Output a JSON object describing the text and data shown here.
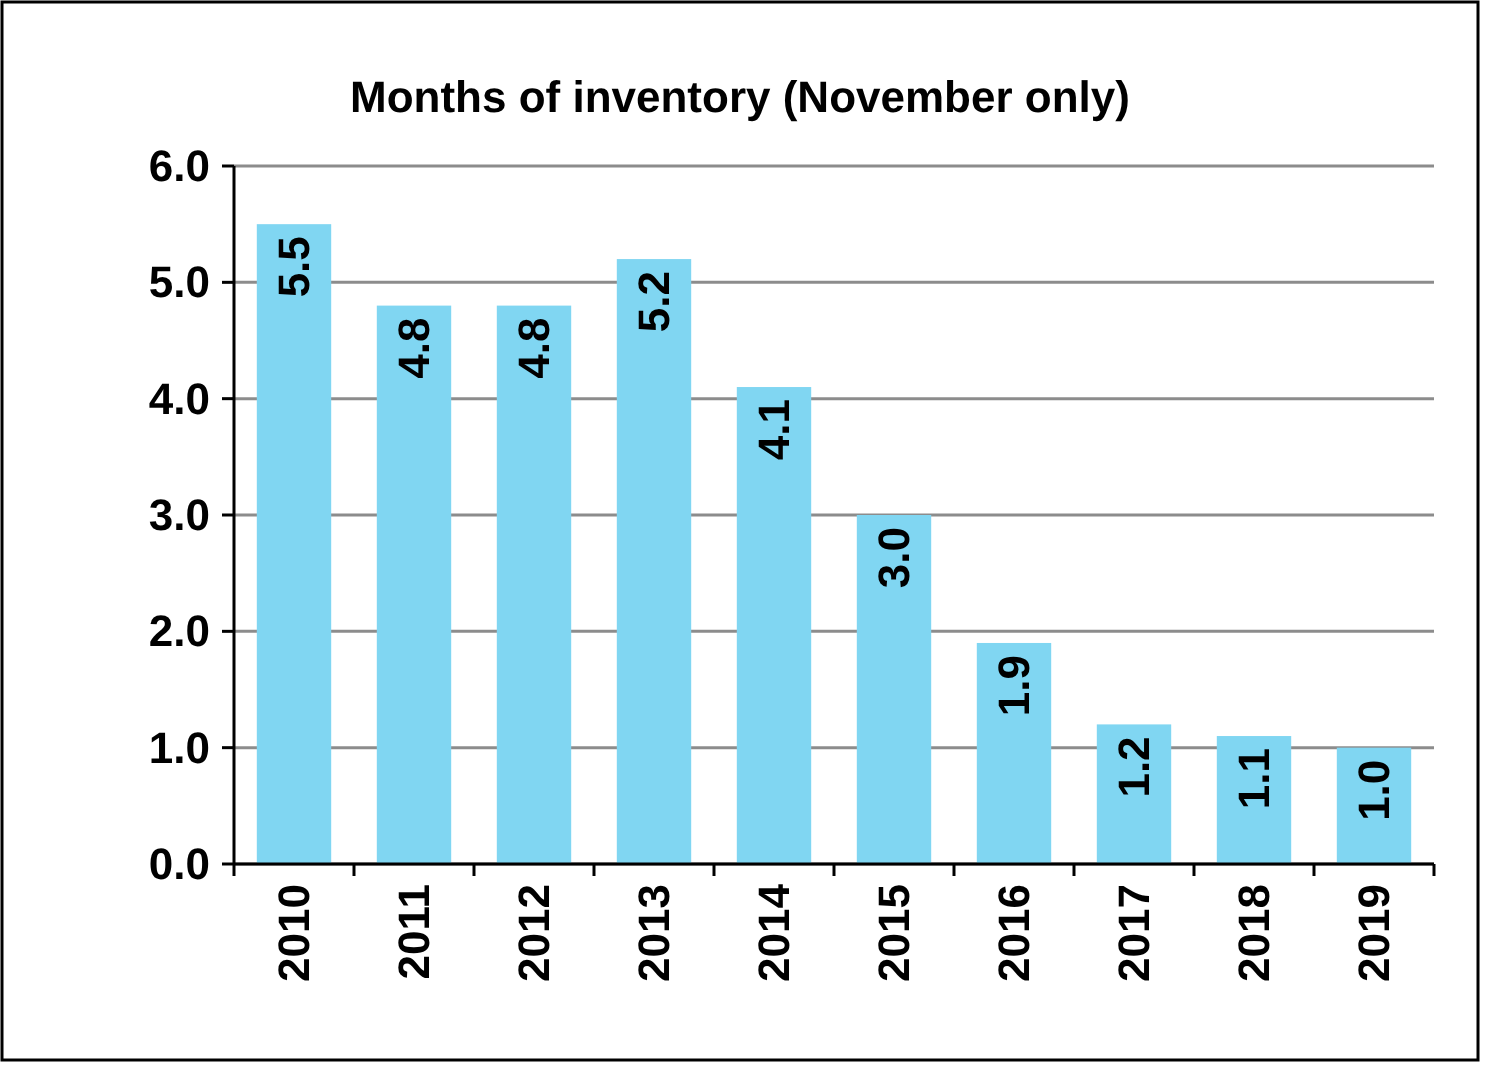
{
  "chart_data": {
    "type": "bar",
    "title": "Months of inventory (November only)",
    "categories": [
      "2010",
      "2011",
      "2012",
      "2013",
      "2014",
      "2015",
      "2016",
      "2017",
      "2018",
      "2019"
    ],
    "values": [
      5.5,
      4.8,
      4.8,
      5.2,
      4.1,
      3.0,
      1.9,
      1.2,
      1.1,
      1.0
    ],
    "color": "#80d6f2",
    "ylim": [
      0,
      6
    ],
    "yticks": [
      {
        "value": 0,
        "label": "0.0"
      },
      {
        "value": 1,
        "label": "1.0"
      },
      {
        "value": 2,
        "label": "2.0"
      },
      {
        "value": 3,
        "label": "3.0"
      },
      {
        "value": 4,
        "label": "4.0"
      },
      {
        "value": 5,
        "label": "5.0"
      },
      {
        "value": 6,
        "label": "6.0"
      }
    ],
    "value_labels": [
      "5.5",
      "4.8",
      "4.8",
      "5.2",
      "4.1",
      "3.0",
      "1.9",
      "1.2",
      "1.1",
      "1.0"
    ],
    "grid": "y"
  }
}
